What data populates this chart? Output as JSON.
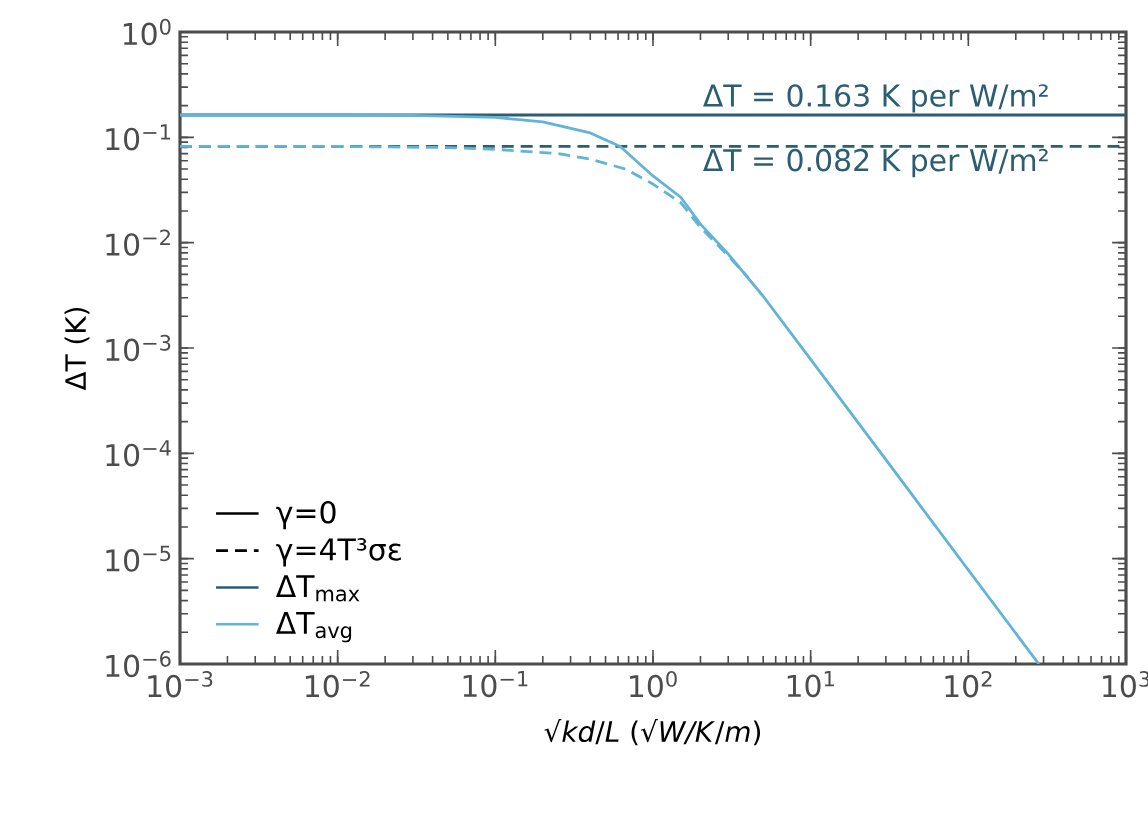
{
  "chart_data": {
    "type": "line",
    "xlabel": "√*kd*/*L* (√*W/K*/*m*)",
    "ylabel": "ΔT (K)",
    "log": "xy",
    "legend": "bottom left",
    "xlim": [
      0.001,
      1000
    ],
    "ylim": [
      1e-06,
      1
    ],
    "xticks": [
      {
        "value": 0.001,
        "label": "10$^{−3}$"
      },
      {
        "value": 0.01,
        "label": "10$^{−2}$"
      },
      {
        "value": 0.1,
        "label": "10$^{−1}$"
      },
      {
        "value": 1,
        "label": "10$^{0}$"
      },
      {
        "value": 10,
        "label": "10$^{1}$"
      },
      {
        "value": 100,
        "label": "10$^{2}$"
      },
      {
        "value": 1000,
        "label": "10$^{3}$"
      }
    ],
    "yticks": [
      {
        "value": 1e-06,
        "label": "10$^{−6}$"
      },
      {
        "value": 1e-05,
        "label": "10$^{−5}$"
      },
      {
        "value": 0.0001,
        "label": "10$^{−4}$"
      },
      {
        "value": 0.001,
        "label": "10$^{−3}$"
      },
      {
        "value": 0.01,
        "label": "10$^{−2}$"
      },
      {
        "value": 0.1,
        "label": "10$^{−1}$"
      },
      {
        "value": 1,
        "label": "10$^{0}$"
      }
    ],
    "series": [
      {
        "name": "ΔT$_{max}$",
        "color": "#2b5d73",
        "line_style": "solid",
        "x": [
          0.001,
          1000
        ],
        "values": [
          0.163,
          0.163
        ]
      },
      {
        "color": "#2b5d73",
        "line_style": "dashed",
        "x": [
          0.001,
          1000
        ],
        "values": [
          0.082,
          0.082
        ]
      },
      {
        "name": "ΔT$_{avg}$",
        "color": "#62b3d8",
        "line_style": "solid",
        "x": [
          0.001,
          0.01,
          0.03,
          0.1,
          0.2,
          0.4,
          0.62,
          1,
          1.5,
          2,
          3,
          5,
          10,
          30,
          100,
          280
        ],
        "values": [
          0.163,
          0.163,
          0.162,
          0.155,
          0.14,
          0.11,
          0.082,
          0.043,
          0.027,
          0.015,
          0.0078,
          0.0031,
          0.00078,
          8.7e-05,
          7.8e-06,
          1e-06
        ]
      },
      {
        "color": "#62b3d8",
        "line_style": "dashed",
        "x": [
          0.001,
          0.01,
          0.05,
          0.1,
          0.25,
          0.4,
          0.67,
          1,
          1.5,
          2,
          3,
          4
        ],
        "values": [
          0.082,
          0.082,
          0.08,
          0.077,
          0.07,
          0.062,
          0.05,
          0.036,
          0.024,
          0.014,
          0.0075,
          0.0047
        ]
      }
    ],
    "annotations": [
      {
        "text": "ΔT = 0.163 K per W/m²",
        "x": 2,
        "y": 0.163
      },
      {
        "text": "ΔT = 0.082 K per W/m²",
        "x": 2,
        "y": 0.082
      },
      "γ=0",
      "γ=4T³σε"
    ]
  }
}
